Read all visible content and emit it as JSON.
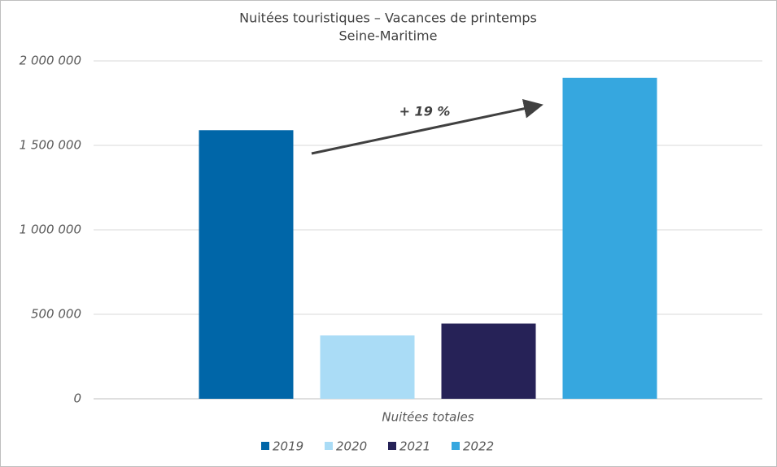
{
  "chart_data": {
    "type": "bar",
    "title": "Nuitées touristiques – Vacances de printemps",
    "subtitle": "Seine-Maritime",
    "categories": [
      "Nuitées totales"
    ],
    "series": [
      {
        "name": "2019",
        "color": "#0066a8",
        "values": [
          1590000
        ]
      },
      {
        "name": "2020",
        "color": "#aadcf6",
        "values": [
          375000
        ]
      },
      {
        "name": "2021",
        "color": "#262257",
        "values": [
          445000
        ]
      },
      {
        "name": "2022",
        "color": "#36a7df",
        "values": [
          1900000
        ]
      }
    ],
    "annotation": "+ 19 %",
    "ylim": [
      0,
      2000000
    ],
    "yticks": [
      0,
      {
        "value": 500000,
        "label": "500 000"
      },
      {
        "value": 1000000,
        "label": "1 000 000"
      },
      {
        "value": 1500000,
        "label": "1 500 000"
      },
      {
        "value": 2000000,
        "label": "2 000 000"
      }
    ],
    "grid": true,
    "legend": "bottom"
  }
}
